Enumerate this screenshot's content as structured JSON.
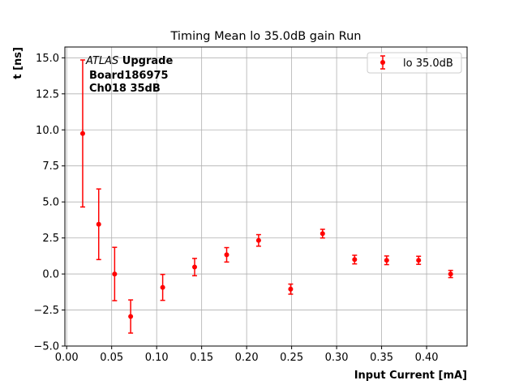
{
  "chart_data": {
    "type": "scatter",
    "title": "Timing Mean lo 35.0dB gain Run",
    "xlabel": "Input Current [mA]",
    "ylabel": "t [ns]",
    "xlim": [
      -0.002,
      0.445
    ],
    "ylim": [
      -5.0,
      15.75
    ],
    "xticks": [
      0.0,
      0.05,
      0.1,
      0.15,
      0.2,
      0.25,
      0.3,
      0.35,
      0.4
    ],
    "xtick_labels": [
      "0.00",
      "0.05",
      "0.10",
      "0.15",
      "0.20",
      "0.25",
      "0.30",
      "0.35",
      "0.40"
    ],
    "yticks": [
      -5.0,
      -2.5,
      0.0,
      2.5,
      5.0,
      7.5,
      10.0,
      12.5,
      15.0
    ],
    "ytick_labels": [
      "−5.0",
      "−2.5",
      "0.0",
      "2.5",
      "5.0",
      "7.5",
      "10.0",
      "12.5",
      "15.0"
    ],
    "grid": true,
    "legend_position": "top-right",
    "annotation": {
      "line1_italic": "ATLAS",
      "line1_bold": " Upgrade",
      "line2": "Board186975",
      "line3": "Ch018 35dB"
    },
    "series": [
      {
        "name": "lo 35.0dB",
        "color": "#ff0000",
        "x": [
          0.0178,
          0.0356,
          0.0533,
          0.0711,
          0.1067,
          0.1422,
          0.1778,
          0.2133,
          0.2489,
          0.2844,
          0.32,
          0.3556,
          0.3911,
          0.4267
        ],
        "y": [
          9.75,
          3.45,
          0.0,
          -2.95,
          -0.93,
          0.48,
          1.33,
          2.33,
          -1.05,
          2.8,
          1.0,
          0.95,
          0.95,
          0.0
        ],
        "yerr": [
          5.1,
          2.45,
          1.85,
          1.15,
          0.9,
          0.6,
          0.5,
          0.4,
          0.35,
          0.3,
          0.3,
          0.3,
          0.28,
          0.25
        ]
      }
    ]
  }
}
